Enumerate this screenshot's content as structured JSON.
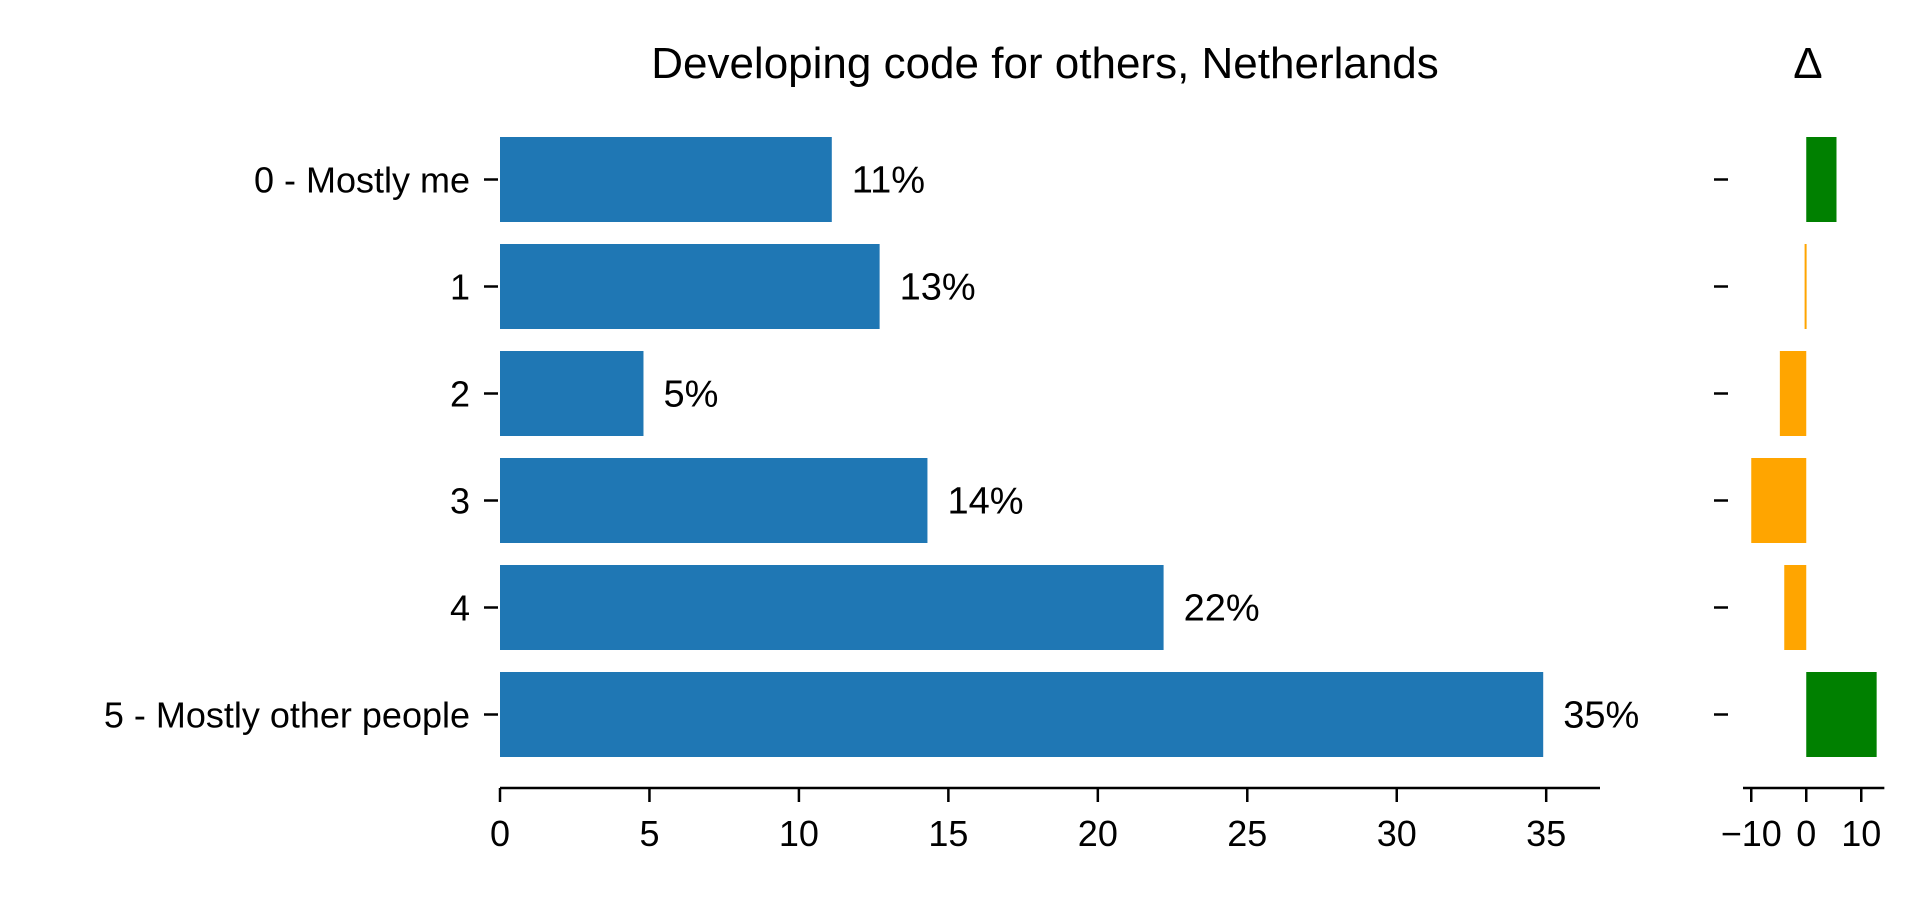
{
  "chart_data": [
    {
      "type": "bar",
      "orientation": "horizontal",
      "title": "Developing code for others, Netherlands",
      "categories": [
        "0 - Mostly me",
        "1",
        "2",
        "3",
        "4",
        "5 - Mostly other people"
      ],
      "values": [
        11.1,
        12.7,
        4.8,
        14.3,
        22.2,
        34.9
      ],
      "data_labels": [
        "11%",
        "13%",
        "5%",
        "14%",
        "22%",
        "35%"
      ],
      "xlim": [
        0,
        36.8
      ],
      "xticks": [
        0,
        5,
        10,
        15,
        20,
        25,
        30,
        35
      ],
      "xtick_labels": [
        "0",
        "5",
        "10",
        "15",
        "20",
        "25",
        "30",
        "35"
      ],
      "bar_color": "#1f77b4",
      "grid": false
    },
    {
      "type": "bar",
      "orientation": "horizontal",
      "title": "Δ",
      "categories": [
        "0 - Mostly me",
        "1",
        "2",
        "3",
        "4",
        "5 - Mostly other people"
      ],
      "values": [
        5.5,
        -0.3,
        -4.8,
        -10.0,
        -4.0,
        12.8
      ],
      "xlim": [
        -13.5,
        14.5
      ],
      "xticks": [
        -10,
        0,
        10
      ],
      "xtick_labels": [
        "−10",
        "0",
        "10"
      ],
      "positive_color": "#008000",
      "negative_color": "#ffa500",
      "grid": false
    }
  ]
}
